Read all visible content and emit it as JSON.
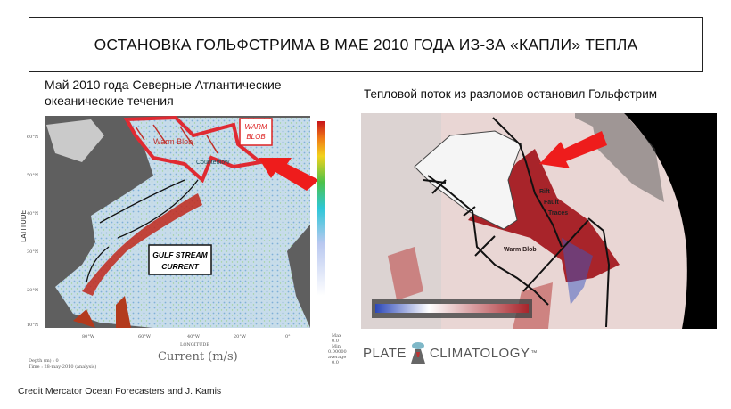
{
  "title": "ОСТАНОВКА ГОЛЬФСТРИМА В МАЕ 2010 ГОДА ИЗ-ЗА «КАПЛИ» ТЕПЛА",
  "left_panel": {
    "caption_line1": "Май 2010 года Северные Атлантические",
    "caption_line2": "океанические течения",
    "map": {
      "label_warm_blob": [
        "WARM",
        "BLOB"
      ],
      "label_warm_blob_inner": "Warm Blob",
      "label_counterflow": "Counterflow",
      "label_gulf_stream": [
        "GULF STREAM",
        "CURRENT"
      ],
      "latitude_label": "LATITUDE",
      "longitude_label": "LONGITUDE",
      "lat_ticks": [
        "60°N",
        "50°N",
        "40°N",
        "30°N",
        "20°N",
        "10°N"
      ],
      "lon_ticks": [
        "80°W",
        "60°W",
        "40°W",
        "20°W",
        "0°"
      ],
      "colorbar_title": "Current (m/s)",
      "stats": [
        "Max",
        "0.0",
        "Min",
        "0.00000",
        "average",
        "0.0"
      ],
      "depth_line": "Depth (m) : 0",
      "time_line": "Time : 28-may-2010 (analysis)",
      "colors": {
        "land": "#5f5f5f",
        "ocean": "#bcd6e6",
        "current": "#c0281c",
        "arrow": "#ee1c1c"
      }
    },
    "credit": "Credit Mercator Ocean Forecasters and J. Kamis"
  },
  "right_panel": {
    "caption": "Тепловой поток из разломов остановил Гольфстрим",
    "image": {
      "label_warm_blob": "Warm Blob",
      "label_rift": [
        "Rift",
        "Fault",
        "Traces"
      ],
      "colors": {
        "background": "#000000",
        "anomaly_warm": "#a8242a",
        "anomaly_cold": "#2b47b8",
        "arrow": "#ee1c1c"
      }
    },
    "logo": {
      "left": "PLATE",
      "right": "CLIMATOLOGY",
      "tm": "™"
    }
  }
}
